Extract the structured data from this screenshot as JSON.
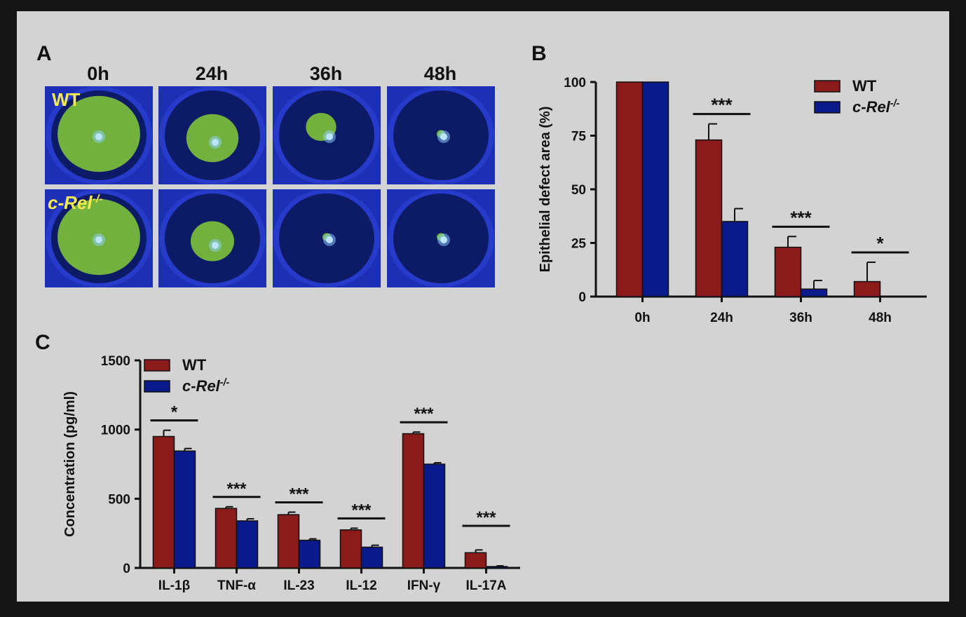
{
  "panel_a": {
    "label": "A",
    "timepoints": [
      "0h",
      "24h",
      "36h",
      "48h"
    ],
    "rows": [
      {
        "label": "WT",
        "stain_extent": [
          0.95,
          0.6,
          0.35,
          0.05
        ]
      },
      {
        "label": "c-Rel",
        "label_sup": "-/-",
        "stain_extent": [
          0.95,
          0.5,
          0.05,
          0.05
        ]
      }
    ],
    "colors": {
      "stain": "#7ec23a",
      "background": "#1d2fb5",
      "dark": "#0d1a66"
    }
  },
  "chart_data": [
    {
      "id": "B",
      "label": "B",
      "type": "bar",
      "categories": [
        "0h",
        "24h",
        "36h",
        "48h"
      ],
      "series": [
        {
          "name": "WT",
          "name_sup": "",
          "color": "#8b1a1a",
          "values": [
            100,
            73,
            23,
            7
          ],
          "errors": [
            0,
            7.5,
            5,
            9
          ]
        },
        {
          "name": "c-Rel",
          "name_sup": "-/-",
          "color": "#0a1a8a",
          "values": [
            100,
            35,
            3.5,
            0
          ],
          "errors": [
            0,
            6,
            4,
            0
          ]
        }
      ],
      "significance": [
        "",
        "***",
        "***",
        "*"
      ],
      "ylabel": "Epithelial defect area (%)",
      "ylim": [
        0,
        100
      ],
      "yticks": [
        0,
        25,
        50,
        75,
        100
      ],
      "legend_position": "top-right"
    },
    {
      "id": "C",
      "label": "C",
      "type": "bar",
      "categories": [
        "IL-1β",
        "TNF-α",
        "IL-23",
        "IL-12",
        "IFN-γ",
        "IL-17A"
      ],
      "series": [
        {
          "name": "WT",
          "name_sup": "",
          "color": "#8b1a1a",
          "values": [
            950,
            430,
            385,
            275,
            970,
            110
          ],
          "errors": [
            45,
            12,
            18,
            12,
            12,
            20
          ]
        },
        {
          "name": "c-Rel",
          "name_sup": "-/-",
          "color": "#0a1a8a",
          "values": [
            845,
            340,
            200,
            150,
            750,
            10
          ],
          "errors": [
            18,
            15,
            10,
            14,
            10,
            5
          ]
        }
      ],
      "significance": [
        "*",
        "***",
        "***",
        "***",
        "***",
        "***"
      ],
      "ylabel": "Concentration (pg/ml)",
      "ylim": [
        0,
        1500
      ],
      "yticks": [
        0,
        500,
        1000,
        1500
      ],
      "legend_position": "top-left"
    }
  ]
}
